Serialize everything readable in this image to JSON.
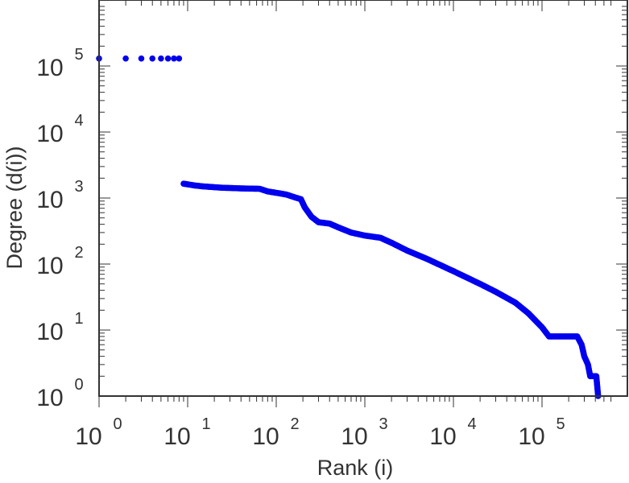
{
  "chart_data": {
    "type": "scatter",
    "xlabel": "Rank (i)",
    "ylabel": "Degree (d(i))",
    "x_scale": "log",
    "y_scale": "log",
    "xlim": [
      1,
      600000
    ],
    "ylim": [
      1,
      800000
    ],
    "x_ticks": [
      {
        "base": "10",
        "exp": "0",
        "value": 1
      },
      {
        "base": "10",
        "exp": "1",
        "value": 10
      },
      {
        "base": "10",
        "exp": "2",
        "value": 100
      },
      {
        "base": "10",
        "exp": "3",
        "value": 1000
      },
      {
        "base": "10",
        "exp": "4",
        "value": 10000
      },
      {
        "base": "10",
        "exp": "5",
        "value": 100000
      }
    ],
    "y_ticks": [
      {
        "base": "10",
        "exp": "0",
        "value": 1
      },
      {
        "base": "10",
        "exp": "1",
        "value": 10
      },
      {
        "base": "10",
        "exp": "2",
        "value": 100
      },
      {
        "base": "10",
        "exp": "3",
        "value": 1000
      },
      {
        "base": "10",
        "exp": "4",
        "value": 10000
      },
      {
        "base": "10",
        "exp": "5",
        "value": 100000
      }
    ],
    "grid": false,
    "legend": "none",
    "colors": {
      "series": "#0000ee",
      "axis": "#333333"
    },
    "series": [
      {
        "points": [
          [
            1,
            130000
          ],
          [
            2,
            130000
          ],
          [
            3,
            130000
          ],
          [
            4,
            130000
          ],
          [
            5,
            130000
          ],
          [
            6,
            130000
          ],
          [
            7,
            130000
          ],
          [
            8,
            130000
          ],
          [
            9,
            1650
          ],
          [
            12,
            1550
          ],
          [
            15,
            1500
          ],
          [
            20,
            1460
          ],
          [
            25,
            1430
          ],
          [
            30,
            1420
          ],
          [
            40,
            1400
          ],
          [
            50,
            1390
          ],
          [
            65,
            1380
          ],
          [
            80,
            1260
          ],
          [
            100,
            1200
          ],
          [
            130,
            1130
          ],
          [
            160,
            1030
          ],
          [
            190,
            960
          ],
          [
            210,
            720
          ],
          [
            250,
            520
          ],
          [
            300,
            430
          ],
          [
            400,
            410
          ],
          [
            500,
            360
          ],
          [
            700,
            300
          ],
          [
            1000,
            270
          ],
          [
            1500,
            250
          ],
          [
            2000,
            210
          ],
          [
            3000,
            160
          ],
          [
            5000,
            120
          ],
          [
            10000,
            78
          ],
          [
            20000,
            50
          ],
          [
            30000,
            38
          ],
          [
            50000,
            26
          ],
          [
            70000,
            18
          ],
          [
            100000,
            11
          ],
          [
            120000,
            8
          ],
          [
            150000,
            8
          ],
          [
            200000,
            8
          ],
          [
            250000,
            8
          ],
          [
            280000,
            6
          ],
          [
            300000,
            4
          ],
          [
            330000,
            3
          ],
          [
            350000,
            2
          ],
          [
            380000,
            2
          ],
          [
            410000,
            2
          ],
          [
            430000,
            1
          ]
        ]
      }
    ]
  }
}
